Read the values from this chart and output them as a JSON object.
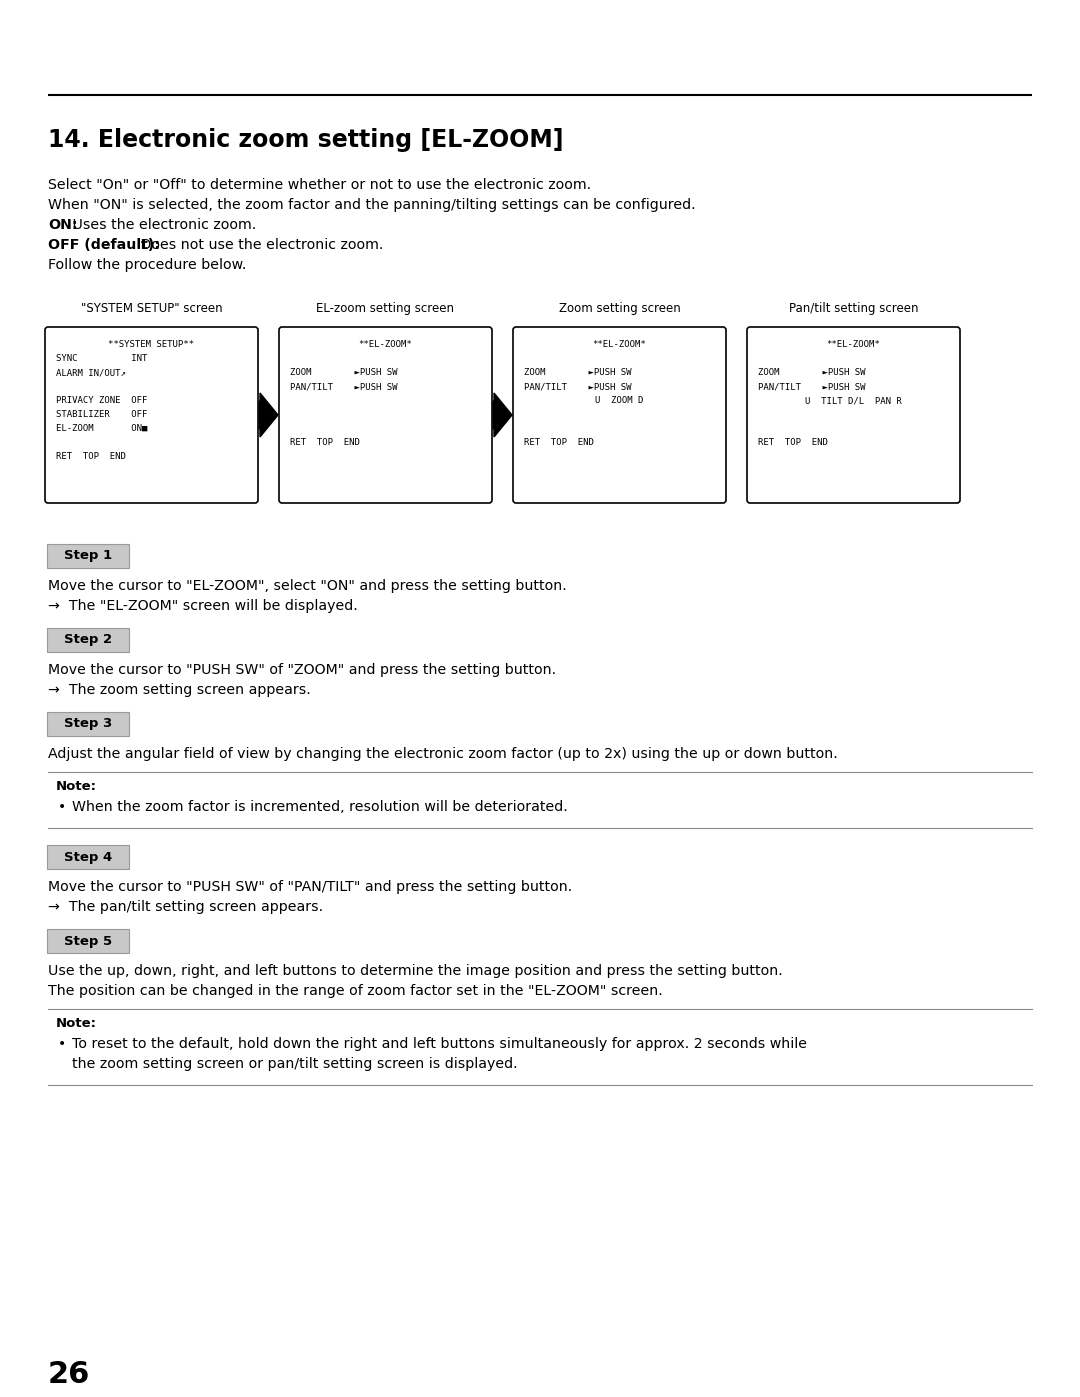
{
  "title": "14. Electronic zoom setting [EL-ZOOM]",
  "background_color": "#ffffff",
  "text_color": "#000000",
  "intro_lines": [
    "Select \"On\" or \"Off\" to determine whether or not to use the electronic zoom.",
    "When \"ON\" is selected, the zoom factor and the panning/tilting settings can be configured.",
    [
      "ON:",
      " Uses the electronic zoom."
    ],
    [
      "OFF (default):",
      " Does not use the electronic zoom."
    ],
    "Follow the procedure below."
  ],
  "screen_labels": [
    "\"SYSTEM SETUP\" screen",
    "EL-zoom setting screen",
    "Zoom setting screen",
    "Pan/tilt setting screen"
  ],
  "screen1_lines": [
    [
      "c",
      "**SYSTEM SETUP**"
    ],
    [
      "l",
      "SYNC          INT"
    ],
    [
      "l",
      "ALARM IN/OUT↗"
    ],
    [
      "l",
      ""
    ],
    [
      "l",
      "PRIVACY ZONE  OFF"
    ],
    [
      "l",
      "STABILIZER    OFF"
    ],
    [
      "l",
      "EL-ZOOM       ON■"
    ],
    [
      "l",
      ""
    ],
    [
      "l",
      "RET  TOP  END"
    ]
  ],
  "screen2_lines": [
    [
      "c",
      "**EL-ZOOM*"
    ],
    [
      "l",
      ""
    ],
    [
      "l",
      "ZOOM        ►PUSH SW"
    ],
    [
      "l",
      "PAN/TILT    ►PUSH SW"
    ],
    [
      "l",
      ""
    ],
    [
      "l",
      ""
    ],
    [
      "l",
      ""
    ],
    [
      "l",
      "RET  TOP  END"
    ]
  ],
  "screen3_lines": [
    [
      "c",
      "**EL-ZOOM*"
    ],
    [
      "l",
      ""
    ],
    [
      "l",
      "ZOOM        ►PUSH SW"
    ],
    [
      "l",
      "PAN/TILT    ►PUSH SW"
    ],
    [
      "c",
      "U  ZOOM D"
    ],
    [
      "l",
      ""
    ],
    [
      "l",
      ""
    ],
    [
      "l",
      "RET  TOP  END"
    ]
  ],
  "screen4_lines": [
    [
      "c",
      "**EL-ZOOM*"
    ],
    [
      "l",
      ""
    ],
    [
      "l",
      "ZOOM        ►PUSH SW"
    ],
    [
      "l",
      "PAN/TILT    ►PUSH SW"
    ],
    [
      "c",
      "U  TILT D/L  PAN R"
    ],
    [
      "l",
      ""
    ],
    [
      "l",
      ""
    ],
    [
      "l",
      "RET  TOP  END"
    ]
  ],
  "step_boxes": [
    {
      "label": "Step 1",
      "lines": [
        "Move the cursor to \"EL-ZOOM\", select \"ON\" and press the setting button.",
        "→  The \"EL-ZOOM\" screen will be displayed."
      ]
    },
    {
      "label": "Step 2",
      "lines": [
        "Move the cursor to \"PUSH SW\" of \"ZOOM\" and press the setting button.",
        "→  The zoom setting screen appears."
      ]
    },
    {
      "label": "Step 3",
      "lines": [
        "Adjust the angular field of view by changing the electronic zoom factor (up to 2x) using the up or down button."
      ]
    },
    {
      "label": "Step 4",
      "lines": [
        "Move the cursor to \"PUSH SW\" of \"PAN/TILT\" and press the setting button.",
        "→  The pan/tilt setting screen appears."
      ]
    },
    {
      "label": "Step 5",
      "lines": [
        "Use the up, down, right, and left buttons to determine the image position and press the setting button.",
        "The position can be changed in the range of zoom factor set in the \"EL-ZOOM\" screen."
      ]
    }
  ],
  "note1": {
    "title": "Note:",
    "bullets": [
      "When the zoom factor is incremented, resolution will be deteriorated."
    ]
  },
  "note2": {
    "title": "Note:",
    "bullets": [
      "To reset to the default, hold down the right and left buttons simultaneously for approx. 2 seconds while the zoom setting screen or pan/tilt setting screen is displayed."
    ]
  },
  "page_number": "26"
}
